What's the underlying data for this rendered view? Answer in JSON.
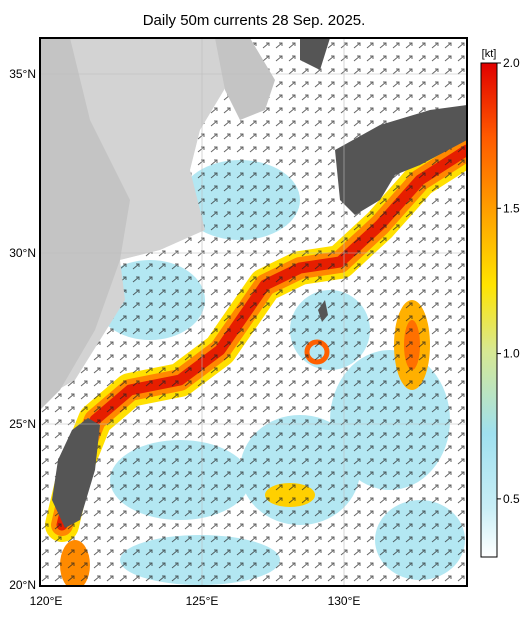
{
  "title": "Daily 50m currents 28 Sep. 2025.",
  "latitude_labels": [
    "35°N",
    "30°N",
    "25°N",
    "20°N"
  ],
  "longitude_labels": [
    "120°E",
    "125°E",
    "130°E"
  ],
  "colorbar": {
    "unit": "[kt]",
    "range": [
      0.3,
      2.0
    ],
    "ticks": [
      {
        "value": 2,
        "label": "2.0"
      },
      1.5,
      {
        "value": 1,
        "label": "1.0"
      },
      0.5
    ]
  }
}
